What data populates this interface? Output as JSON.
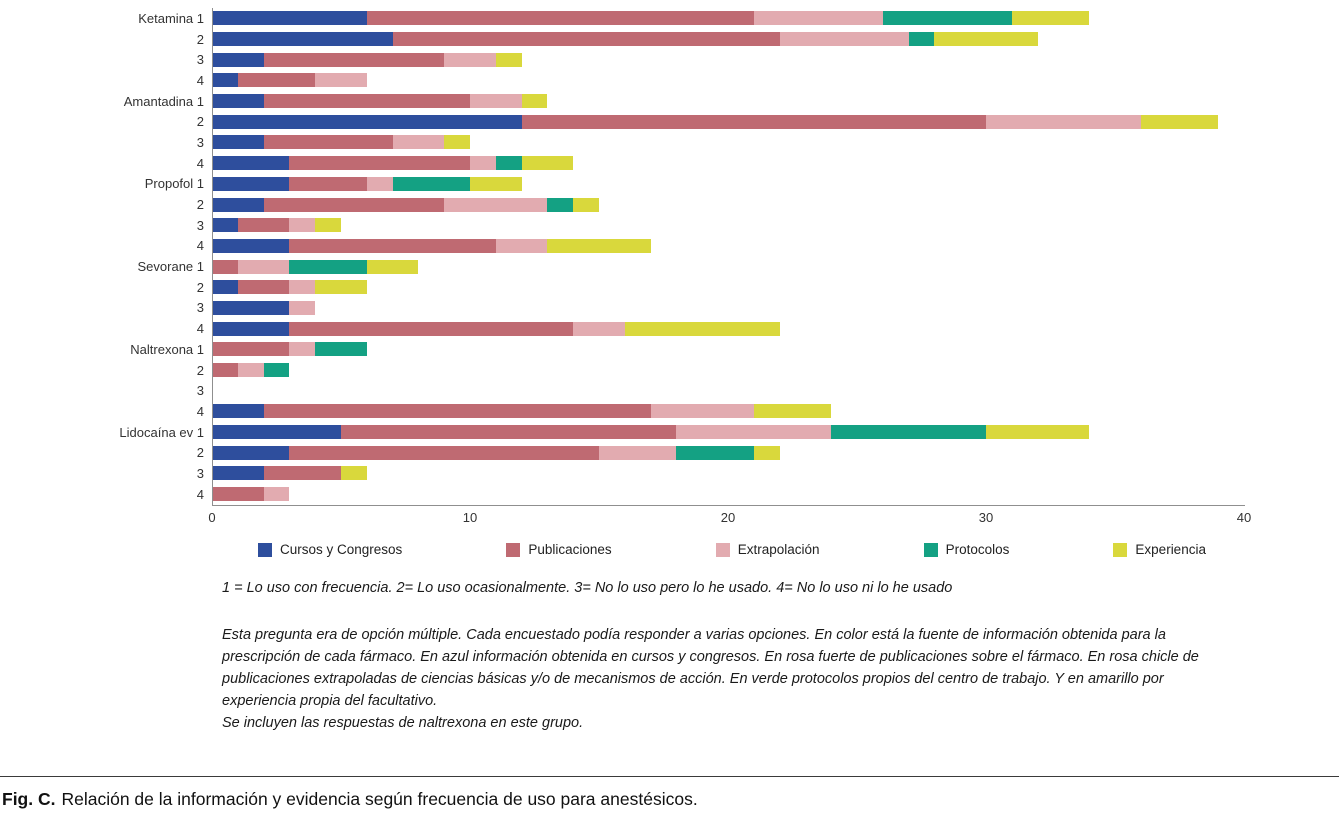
{
  "chart_data": {
    "type": "bar",
    "orientation": "horizontal-stacked",
    "title": "",
    "xlabel": "",
    "ylabel": "",
    "xlim": [
      0,
      40
    ],
    "xticks": [
      0,
      10,
      20,
      30,
      40
    ],
    "grid": false,
    "legend_position": "bottom",
    "categories": [
      "Ketamina 1",
      "2",
      "3",
      "4",
      "Amantadina 1",
      "2",
      "3",
      "4",
      "Propofol 1",
      "2",
      "3",
      "4",
      "Sevorane 1",
      "2",
      "3",
      "4",
      "Naltrexona 1",
      "2",
      "3",
      "4",
      "Lidocaína ev 1",
      "2",
      "3",
      "4"
    ],
    "series": [
      {
        "key": "cursos",
        "name": "Cursos y Congresos",
        "color": "#2e4e9d",
        "values": [
          6,
          7,
          2,
          1,
          2,
          12,
          2,
          3,
          3,
          2,
          1,
          3,
          0,
          1,
          3,
          3,
          0,
          0,
          0,
          2,
          5,
          3,
          2,
          0
        ]
      },
      {
        "key": "publicaciones",
        "name": "Publicaciones",
        "color": "#bf6a72",
        "values": [
          15,
          15,
          7,
          3,
          8,
          18,
          5,
          7,
          3,
          7,
          2,
          8,
          1,
          2,
          0,
          11,
          3,
          1,
          0,
          15,
          13,
          12,
          3,
          2
        ]
      },
      {
        "key": "extrapolacion",
        "name": "Extrapolación",
        "color": "#e2abb0",
        "values": [
          5,
          5,
          2,
          2,
          2,
          6,
          2,
          1,
          1,
          4,
          1,
          2,
          2,
          1,
          1,
          2,
          1,
          1,
          0,
          4,
          6,
          3,
          0,
          1
        ]
      },
      {
        "key": "protocolos",
        "name": "Protocolos",
        "color": "#14a183",
        "values": [
          5,
          1,
          0,
          0,
          0,
          0,
          0,
          1,
          3,
          1,
          0,
          0,
          3,
          0,
          0,
          0,
          2,
          1,
          0,
          0,
          6,
          3,
          0,
          0
        ]
      },
      {
        "key": "experiencia",
        "name": "Experiencia",
        "color": "#d9d83c",
        "values": [
          3,
          4,
          1,
          0,
          1,
          3,
          1,
          2,
          2,
          1,
          1,
          4,
          2,
          2,
          0,
          6,
          0,
          0,
          0,
          3,
          4,
          1,
          1,
          0
        ]
      }
    ]
  },
  "notes": {
    "scale": "1 = Lo uso con frecuencia. 2= Lo uso ocasionalmente. 3= No lo uso pero lo he usado. 4= No lo uso ni lo he usado",
    "explanation": "Esta pregunta era de opción múltiple. Cada encuestado podía responder a varias opciones. En color está la fuente de información obtenida para la prescripción de cada fármaco. En azul información obtenida en cursos y congresos. En rosa fuerte de publicaciones sobre el fármaco. En rosa chicle de publicaciones extrapoladas de ciencias básicas y/o de mecanismos de acción. En verde protocolos propios del centro de trabajo. Y en amarillo por experiencia propia del facultativo.",
    "inclusion": "Se incluyen las respuestas de naltrexona en este grupo."
  },
  "caption": {
    "label": "Fig. C.",
    "text": "Relación de la información y evidencia según frecuencia de uso para anestésicos."
  }
}
